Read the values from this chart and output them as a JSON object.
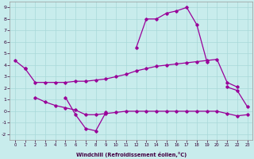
{
  "background_color": "#c8ecec",
  "grid_color": "#a8d8d8",
  "line_color": "#990099",
  "xlabel": "Windchill (Refroidissement éolien,°C)",
  "s1_x": [
    0,
    1,
    2,
    3,
    4,
    5,
    6,
    7,
    8,
    9,
    10,
    11,
    12,
    13,
    14,
    15,
    16,
    17,
    18,
    19,
    20,
    21,
    22,
    23
  ],
  "s1_y": [
    4.4,
    3.7,
    null,
    null,
    null,
    1.2,
    -0.3,
    -1.5,
    -1.7,
    -0.1,
    null,
    null,
    5.5,
    8.0,
    8.0,
    8.5,
    8.7,
    9.0,
    7.5,
    4.3,
    null,
    2.1,
    1.8,
    0.4
  ],
  "s2_x": [
    1,
    2,
    3,
    4,
    5,
    6,
    7,
    8,
    9,
    10,
    11,
    12,
    13,
    14,
    15,
    16,
    17,
    18,
    19,
    20,
    21,
    22,
    23
  ],
  "s2_y": [
    3.7,
    2.5,
    2.5,
    2.5,
    2.5,
    2.6,
    2.6,
    2.7,
    2.8,
    3.0,
    3.2,
    3.5,
    3.7,
    3.9,
    4.0,
    4.1,
    4.2,
    4.3,
    4.4,
    4.5,
    2.5,
    2.1,
    null
  ],
  "s3_x": [
    2,
    3,
    4,
    5,
    6,
    7,
    8,
    9,
    10,
    11,
    12,
    13,
    14,
    15,
    16,
    17,
    18,
    19,
    20,
    21,
    22,
    23
  ],
  "s3_y": [
    1.2,
    0.8,
    0.5,
    0.3,
    0.1,
    -0.3,
    -0.3,
    -0.2,
    -0.1,
    0.0,
    0.0,
    0.0,
    0.0,
    0.0,
    0.0,
    0.0,
    0.0,
    0.0,
    0.0,
    -0.2,
    -0.4,
    -0.3
  ],
  "ylim": [
    -2.5,
    9.5
  ],
  "xlim": [
    -0.5,
    23.5
  ],
  "yticks": [
    -2,
    -1,
    0,
    1,
    2,
    3,
    4,
    5,
    6,
    7,
    8,
    9
  ],
  "xticks": [
    0,
    1,
    2,
    3,
    4,
    5,
    6,
    7,
    8,
    9,
    10,
    11,
    12,
    13,
    14,
    15,
    16,
    17,
    18,
    19,
    20,
    21,
    22,
    23
  ]
}
